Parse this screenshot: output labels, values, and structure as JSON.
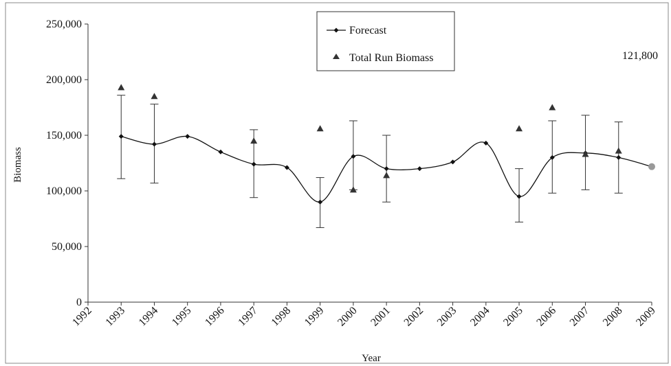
{
  "chart_data": {
    "type": "line",
    "title": "",
    "xlabel": "Year",
    "ylabel": "Biomass",
    "xlim": [
      1992,
      2009
    ],
    "ylim": [
      0,
      250000
    ],
    "x_ticks": [
      "1992",
      "1993",
      "1994",
      "1995",
      "1996",
      "1997",
      "1998",
      "1999",
      "2000",
      "2001",
      "2002",
      "2003",
      "2004",
      "2005",
      "2006",
      "2007",
      "2008",
      "2009"
    ],
    "y_ticks": [
      "0",
      "50,000",
      "100,000",
      "150,000",
      "200,000",
      "250,000"
    ],
    "y_tick_values": [
      0,
      50000,
      100000,
      150000,
      200000,
      250000
    ],
    "grid": false,
    "legend_position": "top-center",
    "series": [
      {
        "name": "Forecast",
        "style": "line-with-diamond-markers",
        "color": "#111111",
        "x": [
          1993,
          1994,
          1995,
          1996,
          1997,
          1998,
          1999,
          2000,
          2001,
          2002,
          2003,
          2004,
          2005,
          2006,
          2007,
          2008,
          2009
        ],
        "values": [
          149000,
          142000,
          149000,
          135000,
          124000,
          121000,
          90000,
          131000,
          120000,
          120000,
          126000,
          143000,
          95000,
          130000,
          134000,
          130000,
          121800
        ],
        "error_bars": [
          {
            "x": 1993,
            "low": 111000,
            "high": 186000
          },
          {
            "x": 1994,
            "low": 107000,
            "high": 178000
          },
          {
            "x": 1997,
            "low": 94000,
            "high": 155000
          },
          {
            "x": 1999,
            "low": 67000,
            "high": 112000
          },
          {
            "x": 2000,
            "low": 101000,
            "high": 163000
          },
          {
            "x": 2001,
            "low": 90000,
            "high": 150000
          },
          {
            "x": 2005,
            "low": 72000,
            "high": 120000
          },
          {
            "x": 2006,
            "low": 98000,
            "high": 163000
          },
          {
            "x": 2007,
            "low": 101000,
            "high": 168000
          },
          {
            "x": 2008,
            "low": 98000,
            "high": 162000
          }
        ]
      },
      {
        "name": "Total Run Biomass",
        "style": "triangle-markers",
        "color": "#333333",
        "x": [
          1993,
          1994,
          1997,
          1999,
          2000,
          2001,
          2005,
          2006,
          2007,
          2008
        ],
        "values": [
          193000,
          185000,
          145000,
          156000,
          101000,
          114000,
          156000,
          175000,
          133000,
          136000
        ]
      }
    ],
    "highlight_point": {
      "x": 2009,
      "y": 121800,
      "color": "#999999"
    },
    "annotations": [
      {
        "text": "121,800",
        "anchor": "top-right"
      }
    ]
  }
}
